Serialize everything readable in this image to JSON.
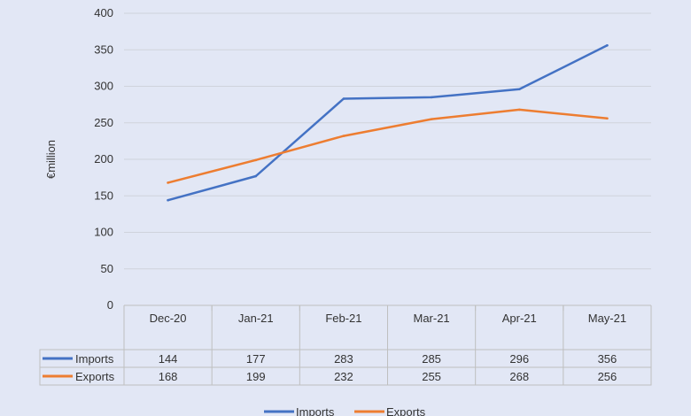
{
  "chart_data": {
    "type": "line",
    "title": "",
    "xlabel": "",
    "ylabel": "€million",
    "ylim": [
      0,
      400
    ],
    "yticks": [
      0,
      50,
      100,
      150,
      200,
      250,
      300,
      350,
      400
    ],
    "grid": true,
    "legend_position": "bottom",
    "data_table": true,
    "categories": [
      "Dec-20",
      "Jan-21",
      "Feb-21",
      "Mar-21",
      "Apr-21",
      "May-21"
    ],
    "series": [
      {
        "name": "Imports",
        "color": "#4472c4",
        "values": [
          144,
          177,
          283,
          285,
          296,
          356
        ]
      },
      {
        "name": "Exports",
        "color": "#ed7d31",
        "values": [
          168,
          199,
          232,
          255,
          268,
          256
        ]
      }
    ]
  }
}
